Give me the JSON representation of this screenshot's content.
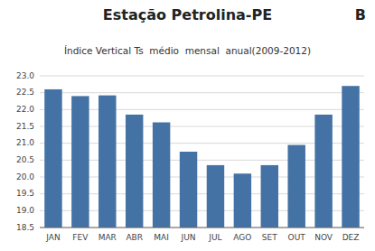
{
  "chart_data": {
    "type": "bar",
    "title": "Estação Petrolina-PE",
    "subtitle": "Índice Vertical Ts  médio  mensal  anual(2009-2012)",
    "annotations": [
      "B"
    ],
    "categories": [
      "JAN",
      "FEV",
      "MAR",
      "ABR",
      "MAI",
      "JUN",
      "JUL",
      "AGO",
      "SET",
      "OUT",
      "NOV",
      "DEZ"
    ],
    "values": [
      22.6,
      22.4,
      22.42,
      21.85,
      21.62,
      20.75,
      20.35,
      20.1,
      20.35,
      20.95,
      21.85,
      22.7
    ],
    "color": "#4472a4",
    "ylim": [
      18.5,
      23.0
    ],
    "yticks": [
      18.5,
      {
        "value": 19.0,
        "label": "19.0"
      },
      19.5,
      {
        "value": 20.0,
        "label": "20.0"
      },
      20.5,
      {
        "value": 21.0,
        "label": "21.0"
      },
      21.5,
      {
        "value": 22.0,
        "label": "22.0"
      },
      22.5,
      {
        "value": 23.0,
        "label": "23.0"
      }
    ],
    "grid": true
  }
}
